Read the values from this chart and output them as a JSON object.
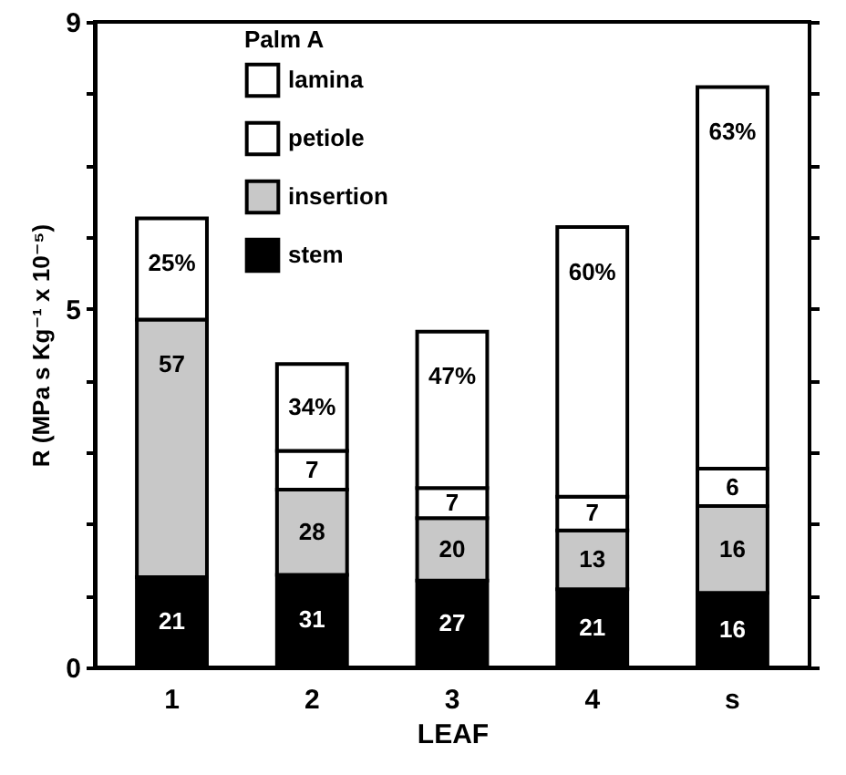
{
  "chart_data": {
    "type": "bar",
    "stacked": true,
    "xlabel": "LEAF",
    "ylabel": "R (MPa s Kg⁻¹ x 10⁻⁵)",
    "legend_title": "Palm A",
    "legend": "top left",
    "grid": false,
    "categories": [
      "1",
      "2",
      "3",
      "4",
      "s"
    ],
    "ylim": [
      0,
      9
    ],
    "yticks": [
      0,
      {
        "value": 1,
        "label": null
      },
      {
        "value": 2,
        "label": null
      },
      {
        "value": 3,
        "label": null
      },
      {
        "value": 4,
        "label": null
      },
      5,
      {
        "value": 6,
        "label": null
      },
      {
        "value": 7,
        "label": null
      },
      {
        "value": 8,
        "label": null
      },
      9
    ],
    "series": [
      {
        "name": "stem",
        "color": "#000000",
        "values": [
          1.26,
          1.29,
          1.21,
          1.09,
          1.04
        ]
      },
      {
        "name": "insertion",
        "color": "#c8c8c8",
        "values": [
          3.59,
          1.19,
          0.87,
          0.82,
          1.21
        ]
      },
      {
        "name": "petiole",
        "color": "#ffffff",
        "values": [
          null,
          0.54,
          0.42,
          0.47,
          0.52
        ]
      },
      {
        "name": "lamina",
        "color": "#ffffff",
        "values": [
          1.41,
          1.21,
          2.18,
          3.76,
          5.32
        ]
      }
    ],
    "annotations": [
      {
        "text": "21",
        "x": "1",
        "y": 1.26
      },
      {
        "text": "57",
        "x": "1",
        "y": 4.85
      },
      {
        "text": "25%",
        "x": "1",
        "y": 6.26
      },
      {
        "text": "31",
        "x": "2",
        "y": 1.29
      },
      {
        "text": "28",
        "x": "2",
        "y": 2.48
      },
      {
        "text": "7",
        "x": "2",
        "y": 3.02
      },
      {
        "text": "34%",
        "x": "2",
        "y": 4.23
      },
      {
        "text": "27",
        "x": "3",
        "y": 1.21
      },
      {
        "text": "20",
        "x": "3",
        "y": 2.08
      },
      {
        "text": "7",
        "x": "3",
        "y": 2.5
      },
      {
        "text": "47%",
        "x": "3",
        "y": 4.68
      },
      {
        "text": "21",
        "x": "4",
        "y": 1.09
      },
      {
        "text": "13",
        "x": "4",
        "y": 1.91
      },
      {
        "text": "7",
        "x": "4",
        "y": 2.38
      },
      {
        "text": "60%",
        "x": "4",
        "y": 6.14
      },
      {
        "text": "16",
        "x": "s",
        "y": 1.04
      },
      {
        "text": "16",
        "x": "s",
        "y": 2.25
      },
      {
        "text": "6",
        "x": "s",
        "y": 2.77
      },
      {
        "text": "63%",
        "x": "s",
        "y": 8.09
      }
    ]
  }
}
